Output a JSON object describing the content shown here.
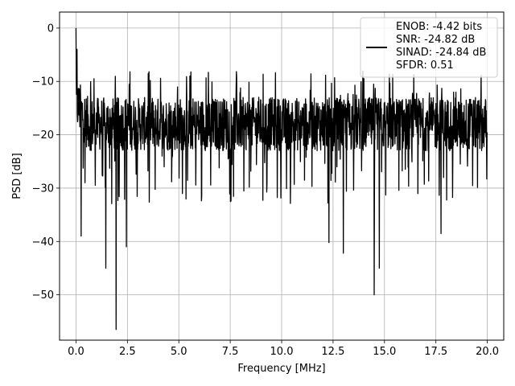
{
  "chart_data": {
    "type": "line",
    "title": "",
    "xlabel": "Frequency [MHz]",
    "ylabel": "PSD [dB]",
    "xlim": [
      -0.8,
      20.8
    ],
    "ylim": [
      -58.5,
      3
    ],
    "xticks": [
      0.0,
      2.5,
      5.0,
      7.5,
      10.0,
      12.5,
      15.0,
      17.5,
      20.0
    ],
    "xtick_labels": [
      "0.0",
      "2.5",
      "5.0",
      "7.5",
      "10.0",
      "12.5",
      "15.0",
      "17.5",
      "20.0"
    ],
    "yticks": [
      0,
      -10,
      -20,
      -30,
      -40,
      -50
    ],
    "ytick_labels": [
      "0",
      "−10",
      "−20",
      "−30",
      "−40",
      "−50"
    ],
    "grid": true,
    "legend_position": "top-right",
    "legend": [
      "ENOB: -4.42 bits",
      "SNR: -24.82 dB",
      "SINAD: -24.84 dB",
      "SFDR: 0.51"
    ],
    "series": [
      {
        "color": "#000000",
        "x_range": [
          0,
          20
        ],
        "noise_floor": [
          -23,
          -13
        ],
        "peaks": [
          {
            "x": 0.0,
            "y": 0.0
          },
          {
            "x": 0.05,
            "y": -4.0
          },
          {
            "x": 0.25,
            "y": -39.0
          },
          {
            "x": 1.45,
            "y": -45.0
          },
          {
            "x": 1.95,
            "y": -56.5
          },
          {
            "x": 2.45,
            "y": -41.0
          },
          {
            "x": 12.3,
            "y": -40.2
          },
          {
            "x": 13.0,
            "y": -42.2
          },
          {
            "x": 14.5,
            "y": -50.0
          },
          {
            "x": 14.75,
            "y": -45.0
          },
          {
            "x": 17.75,
            "y": -38.5
          }
        ]
      }
    ]
  }
}
